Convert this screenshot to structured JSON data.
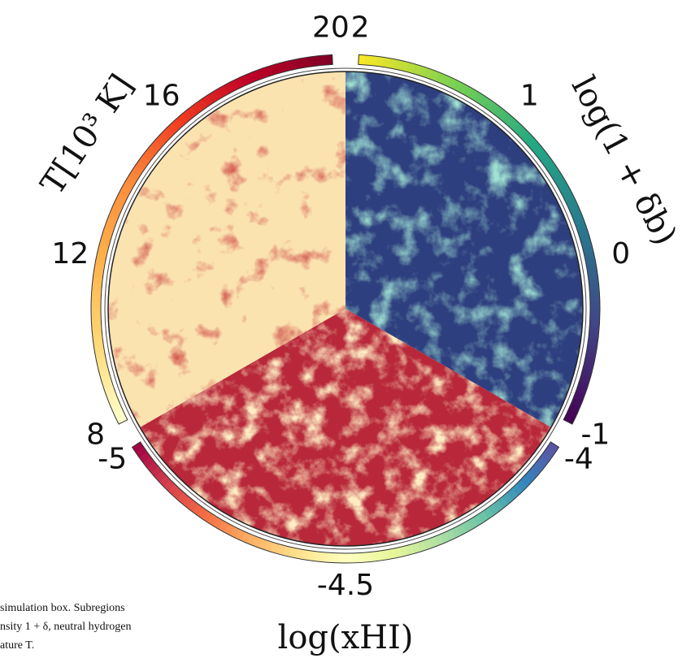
{
  "figure": {
    "colorbars": [
      {
        "label": "log(1 + δb)",
        "lim": [
          -1,
          2
        ],
        "ticks": [
          2,
          1,
          0,
          -1
        ],
        "colormap": [
          "#440154",
          "#414487",
          "#2a788e",
          "#22a884",
          "#7ad151",
          "#fde725"
        ]
      },
      {
        "label": "log(xHI)",
        "lim": [
          -5,
          -4
        ],
        "ticks": [
          -5,
          -4.5,
          -4
        ],
        "colormap": [
          "#9e0142",
          "#d53e4f",
          "#f46d43",
          "#fdae61",
          "#fee08b",
          "#ffffbf",
          "#e6f598",
          "#abdda4",
          "#66c2a5",
          "#3288bd",
          "#5e4fa2"
        ]
      },
      {
        "label": "T[10³ K]",
        "lim": [
          8,
          20
        ],
        "ticks": [
          8,
          12,
          16,
          20
        ],
        "colormap": [
          "#ffffcc",
          "#fed976",
          "#feb24c",
          "#fd8d3c",
          "#f03b20",
          "#bd0026",
          "#800026"
        ]
      }
    ],
    "caption_lines": [
      "simulation box. Subregions",
      "nsity 1 + δ, neutral hydrogen",
      "ature T."
    ]
  }
}
